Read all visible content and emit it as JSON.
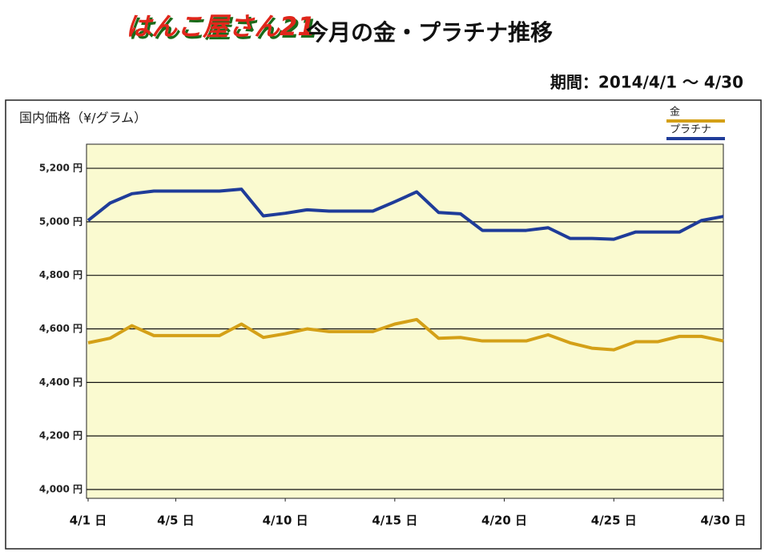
{
  "header": {
    "logo": "はんこ屋さん21",
    "title": "今月の金・プラチナ推移",
    "period": "期間：2014/4/1 〜 4/30"
  },
  "chart_data": {
    "type": "line",
    "ylabel": "国内価格（¥/グラム）",
    "x": [
      1,
      2,
      3,
      4,
      5,
      6,
      7,
      8,
      9,
      10,
      11,
      12,
      13,
      14,
      15,
      16,
      17,
      18,
      19,
      20,
      21,
      22,
      23,
      24,
      25,
      26,
      27,
      28,
      29,
      30
    ],
    "xlim": [
      1,
      30
    ],
    "xticks": [
      {
        "value": 1,
        "label": "4/1 日"
      },
      {
        "value": 5,
        "label": "4/5 日"
      },
      {
        "value": 10,
        "label": "4/10 日"
      },
      {
        "value": 15,
        "label": "4/15 日"
      },
      {
        "value": 20,
        "label": "4/20 日"
      },
      {
        "value": 25,
        "label": "4/25 日"
      },
      {
        "value": 30,
        "label": "4/30 日"
      }
    ],
    "ylim": [
      3967,
      5290
    ],
    "yticks": [
      {
        "value": 4000,
        "label": "4,000 円"
      },
      {
        "value": 4200,
        "label": "4,200 円"
      },
      {
        "value": 4400,
        "label": "4,400 円"
      },
      {
        "value": 4600,
        "label": "4,600 円"
      },
      {
        "value": 4800,
        "label": "4,800 円"
      },
      {
        "value": 5000,
        "label": "5,000 円"
      },
      {
        "value": 5200,
        "label": "5,200 円"
      }
    ],
    "grid": true,
    "legend": "upper right",
    "series": [
      {
        "name": "金",
        "color": "#d4a017",
        "values": [
          4548,
          4565,
          4612,
          4575,
          4575,
          4575,
          4575,
          4618,
          4568,
          4582,
          4600,
          4590,
          4590,
          4590,
          4618,
          4635,
          4565,
          4568,
          4555,
          4555,
          4555,
          4578,
          4548,
          4528,
          4522,
          4552,
          4552,
          4572,
          4572,
          4555
        ]
      },
      {
        "name": "プラチナ",
        "color": "#1f3c99",
        "values": [
          5005,
          5070,
          5105,
          5115,
          5115,
          5115,
          5115,
          5122,
          5022,
          5032,
          5045,
          5040,
          5040,
          5040,
          5075,
          5112,
          5035,
          5030,
          4968,
          4968,
          4968,
          4978,
          4938,
          4938,
          4935,
          4962,
          4962,
          4962,
          5005,
          5020
        ]
      }
    ]
  }
}
